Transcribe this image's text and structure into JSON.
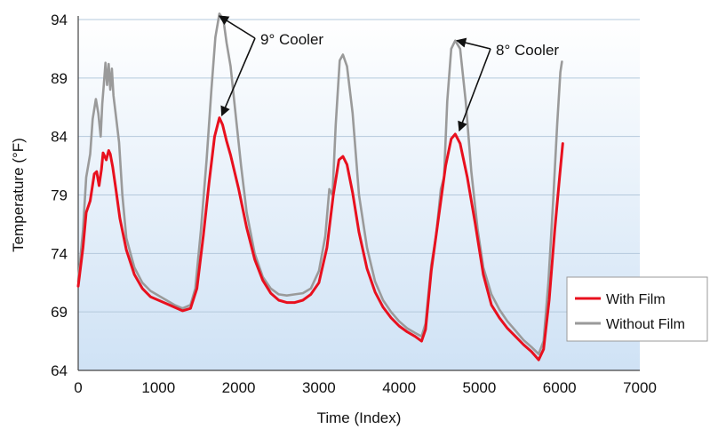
{
  "chart_data": {
    "type": "line",
    "title": "",
    "xlabel": "Time (Index)",
    "ylabel": "Temperature (°F)",
    "xlim": [
      0,
      7000
    ],
    "ylim": [
      64,
      94
    ],
    "xticks": [
      0,
      1000,
      2000,
      3000,
      4000,
      5000,
      6000,
      7000
    ],
    "yticks": [
      64,
      69,
      74,
      79,
      84,
      89,
      94
    ],
    "grid": "horizontal",
    "legend_position": "bottom-right",
    "background": "light blue vertical gradient",
    "series": [
      {
        "name": "With Film",
        "color": "#e8101e",
        "points": [
          [
            0,
            71.2
          ],
          [
            60,
            74.5
          ],
          [
            100,
            77.5
          ],
          [
            150,
            78.5
          ],
          [
            200,
            80.8
          ],
          [
            230,
            81.0
          ],
          [
            260,
            79.8
          ],
          [
            290,
            81.2
          ],
          [
            310,
            82.6
          ],
          [
            350,
            82.0
          ],
          [
            380,
            82.8
          ],
          [
            400,
            82.5
          ],
          [
            430,
            81.4
          ],
          [
            470,
            79.5
          ],
          [
            520,
            77.0
          ],
          [
            600,
            74.3
          ],
          [
            700,
            72.2
          ],
          [
            800,
            71.0
          ],
          [
            900,
            70.3
          ],
          [
            1000,
            70.0
          ],
          [
            1100,
            69.7
          ],
          [
            1200,
            69.4
          ],
          [
            1300,
            69.1
          ],
          [
            1400,
            69.3
          ],
          [
            1480,
            71.0
          ],
          [
            1560,
            75.5
          ],
          [
            1630,
            80.0
          ],
          [
            1700,
            84.0
          ],
          [
            1760,
            85.6
          ],
          [
            1800,
            85.0
          ],
          [
            1850,
            83.6
          ],
          [
            1900,
            82.4
          ],
          [
            2000,
            79.5
          ],
          [
            2100,
            76.2
          ],
          [
            2200,
            73.5
          ],
          [
            2300,
            71.7
          ],
          [
            2400,
            70.6
          ],
          [
            2500,
            70.0
          ],
          [
            2600,
            69.8
          ],
          [
            2700,
            69.8
          ],
          [
            2800,
            70.0
          ],
          [
            2900,
            70.5
          ],
          [
            3000,
            71.5
          ],
          [
            3100,
            74.5
          ],
          [
            3180,
            79.0
          ],
          [
            3250,
            82.0
          ],
          [
            3300,
            82.3
          ],
          [
            3350,
            81.6
          ],
          [
            3420,
            79.2
          ],
          [
            3500,
            75.8
          ],
          [
            3600,
            72.7
          ],
          [
            3700,
            70.7
          ],
          [
            3800,
            69.4
          ],
          [
            3900,
            68.5
          ],
          [
            4000,
            67.8
          ],
          [
            4100,
            67.3
          ],
          [
            4200,
            66.9
          ],
          [
            4280,
            66.5
          ],
          [
            4330,
            67.5
          ],
          [
            4400,
            72.5
          ],
          [
            4500,
            77.5
          ],
          [
            4580,
            81.5
          ],
          [
            4650,
            83.8
          ],
          [
            4700,
            84.2
          ],
          [
            4760,
            83.4
          ],
          [
            4850,
            80.5
          ],
          [
            4950,
            76.5
          ],
          [
            5050,
            72.2
          ],
          [
            5150,
            69.6
          ],
          [
            5250,
            68.5
          ],
          [
            5350,
            67.6
          ],
          [
            5450,
            66.9
          ],
          [
            5550,
            66.2
          ],
          [
            5650,
            65.6
          ],
          [
            5740,
            64.9
          ],
          [
            5800,
            65.8
          ],
          [
            5870,
            70.0
          ],
          [
            5940,
            76.0
          ],
          [
            6000,
            80.5
          ],
          [
            6040,
            83.4
          ]
        ]
      },
      {
        "name": "Without Film",
        "color": "#9a9a9a",
        "points": [
          [
            0,
            71.6
          ],
          [
            60,
            76.0
          ],
          [
            100,
            80.5
          ],
          [
            150,
            82.5
          ],
          [
            180,
            85.5
          ],
          [
            220,
            87.2
          ],
          [
            250,
            86.0
          ],
          [
            280,
            84.0
          ],
          [
            300,
            86.8
          ],
          [
            320,
            88.5
          ],
          [
            340,
            90.3
          ],
          [
            360,
            88.4
          ],
          [
            380,
            90.2
          ],
          [
            400,
            88.0
          ],
          [
            420,
            89.8
          ],
          [
            440,
            87.5
          ],
          [
            470,
            85.8
          ],
          [
            510,
            83.5
          ],
          [
            550,
            79.0
          ],
          [
            600,
            75.3
          ],
          [
            700,
            72.8
          ],
          [
            800,
            71.5
          ],
          [
            900,
            70.8
          ],
          [
            1000,
            70.4
          ],
          [
            1100,
            70.0
          ],
          [
            1200,
            69.6
          ],
          [
            1300,
            69.3
          ],
          [
            1400,
            69.6
          ],
          [
            1460,
            71.0
          ],
          [
            1530,
            76.0
          ],
          [
            1600,
            82.0
          ],
          [
            1660,
            88.0
          ],
          [
            1710,
            92.5
          ],
          [
            1760,
            94.5
          ],
          [
            1810,
            94.0
          ],
          [
            1850,
            92.0
          ],
          [
            1900,
            90.0
          ],
          [
            1960,
            86.0
          ],
          [
            2030,
            81.5
          ],
          [
            2100,
            77.5
          ],
          [
            2200,
            74.0
          ],
          [
            2300,
            72.0
          ],
          [
            2400,
            71.0
          ],
          [
            2500,
            70.5
          ],
          [
            2600,
            70.4
          ],
          [
            2700,
            70.5
          ],
          [
            2800,
            70.6
          ],
          [
            2900,
            71.0
          ],
          [
            3000,
            72.5
          ],
          [
            3080,
            75.5
          ],
          [
            3130,
            79.5
          ],
          [
            3170,
            79.0
          ],
          [
            3210,
            85.0
          ],
          [
            3260,
            90.5
          ],
          [
            3300,
            91.0
          ],
          [
            3350,
            90.0
          ],
          [
            3420,
            86.0
          ],
          [
            3500,
            79.0
          ],
          [
            3600,
            74.5
          ],
          [
            3700,
            71.6
          ],
          [
            3800,
            70.0
          ],
          [
            3900,
            69.0
          ],
          [
            4000,
            68.2
          ],
          [
            4100,
            67.6
          ],
          [
            4200,
            67.2
          ],
          [
            4280,
            66.9
          ],
          [
            4330,
            68.0
          ],
          [
            4400,
            73.0
          ],
          [
            4460,
            75.5
          ],
          [
            4520,
            79.5
          ],
          [
            4560,
            80.5
          ],
          [
            4600,
            87.0
          ],
          [
            4650,
            91.5
          ],
          [
            4700,
            92.2
          ],
          [
            4760,
            91.5
          ],
          [
            4830,
            87.0
          ],
          [
            4900,
            81.0
          ],
          [
            4980,
            76.0
          ],
          [
            5050,
            72.8
          ],
          [
            5150,
            70.5
          ],
          [
            5250,
            69.2
          ],
          [
            5350,
            68.2
          ],
          [
            5450,
            67.4
          ],
          [
            5550,
            66.6
          ],
          [
            5650,
            66.0
          ],
          [
            5740,
            65.4
          ],
          [
            5800,
            66.5
          ],
          [
            5860,
            71.5
          ],
          [
            5920,
            78.5
          ],
          [
            5970,
            85.0
          ],
          [
            6010,
            89.5
          ],
          [
            6030,
            90.4
          ]
        ]
      }
    ],
    "annotations": [
      {
        "text": "9° Cooler",
        "arrows_to": [
          [
            1760,
            94.3
          ],
          [
            1790,
            85.8
          ]
        ]
      },
      {
        "text": "8° Cooler",
        "arrows_to": [
          [
            4720,
            92.2
          ],
          [
            4750,
            84.5
          ]
        ]
      }
    ]
  }
}
